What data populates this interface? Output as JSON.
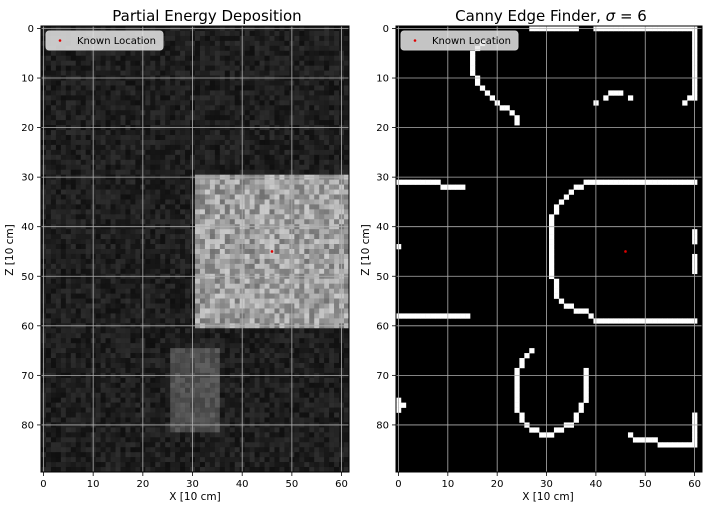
{
  "chart_data": [
    {
      "type": "heatmap",
      "title": "Partial Energy Deposition",
      "xlabel": "X [10 cm]",
      "ylabel": "Z [10 cm]",
      "xlim": [
        -0.5,
        61.5
      ],
      "ylim": [
        89.5,
        -0.5
      ],
      "xticks": [
        "0",
        "10",
        "20",
        "30",
        "40",
        "50",
        "60"
      ],
      "yticks": [
        "0",
        "10",
        "20",
        "30",
        "40",
        "50",
        "60",
        "70",
        "80"
      ],
      "grid": true,
      "legend_position": "top-left",
      "legend": [
        "Known Location"
      ],
      "colormap": "gray",
      "regions": [
        {
          "label": "background",
          "x": [
            0,
            61
          ],
          "z": [
            0,
            89
          ],
          "intensity": 0.12
        },
        {
          "label": "bright block",
          "x": [
            31,
            61
          ],
          "z": [
            30,
            60
          ],
          "intensity": 0.62
        },
        {
          "label": "dim block",
          "x": [
            26,
            35
          ],
          "z": [
            65,
            81
          ],
          "intensity": 0.32
        }
      ],
      "known_location": {
        "x": 46,
        "z": 45
      }
    },
    {
      "type": "heatmap",
      "title": "Canny Edge Finder, σ = 6",
      "title_prefix": "Canny Edge Finder, ",
      "title_sigma": "σ",
      "title_value": " = 6",
      "xlabel": "X [10 cm]",
      "ylabel": "Z [10 cm]",
      "xlim": [
        -0.5,
        61.5
      ],
      "ylim": [
        89.5,
        -0.5
      ],
      "xticks": [
        "0",
        "10",
        "20",
        "30",
        "40",
        "50",
        "60"
      ],
      "yticks": [
        "0",
        "10",
        "20",
        "30",
        "40",
        "50",
        "60",
        "70",
        "80"
      ],
      "grid": true,
      "legend_position": "top-left",
      "legend": [
        "Known Location"
      ],
      "colormap": "binary edges",
      "known_location": {
        "x": 46,
        "z": 45
      },
      "edge_pixels": [
        [
          27,
          0
        ],
        [
          28,
          0
        ],
        [
          29,
          0
        ],
        [
          30,
          0
        ],
        [
          31,
          0
        ],
        [
          32,
          0
        ],
        [
          33,
          0
        ],
        [
          34,
          0
        ],
        [
          35,
          0
        ],
        [
          36,
          0
        ],
        [
          40,
          0
        ],
        [
          41,
          0
        ],
        [
          42,
          0
        ],
        [
          43,
          0
        ],
        [
          44,
          0
        ],
        [
          45,
          0
        ],
        [
          46,
          0
        ],
        [
          47,
          0
        ],
        [
          48,
          0
        ],
        [
          49,
          0
        ],
        [
          50,
          0
        ],
        [
          51,
          0
        ],
        [
          52,
          0
        ],
        [
          53,
          0
        ],
        [
          54,
          0
        ],
        [
          55,
          0
        ],
        [
          56,
          0
        ],
        [
          57,
          0
        ],
        [
          58,
          0
        ],
        [
          59,
          0
        ],
        [
          60,
          0
        ],
        [
          60,
          1
        ],
        [
          60,
          2
        ],
        [
          60,
          3
        ],
        [
          60,
          4
        ],
        [
          60,
          5
        ],
        [
          60,
          6
        ],
        [
          60,
          7
        ],
        [
          60,
          8
        ],
        [
          60,
          9
        ],
        [
          60,
          10
        ],
        [
          60,
          11
        ],
        [
          60,
          12
        ],
        [
          60,
          13
        ],
        [
          59,
          14
        ],
        [
          60,
          14
        ],
        [
          58,
          15
        ],
        [
          17,
          3
        ],
        [
          16,
          4
        ],
        [
          15,
          5
        ],
        [
          15,
          6
        ],
        [
          15,
          7
        ],
        [
          15,
          8
        ],
        [
          15,
          9
        ],
        [
          16,
          10
        ],
        [
          16,
          11
        ],
        [
          17,
          12
        ],
        [
          18,
          13
        ],
        [
          19,
          14
        ],
        [
          20,
          15
        ],
        [
          21,
          16
        ],
        [
          22,
          16
        ],
        [
          23,
          17
        ],
        [
          24,
          18
        ],
        [
          24,
          19
        ],
        [
          43,
          13
        ],
        [
          44,
          13
        ],
        [
          45,
          13
        ],
        [
          42,
          14
        ],
        [
          47,
          14
        ],
        [
          40,
          15
        ],
        [
          0,
          31
        ],
        [
          1,
          31
        ],
        [
          2,
          31
        ],
        [
          3,
          31
        ],
        [
          4,
          31
        ],
        [
          5,
          31
        ],
        [
          6,
          31
        ],
        [
          7,
          31
        ],
        [
          8,
          31
        ],
        [
          9,
          32
        ],
        [
          10,
          32
        ],
        [
          11,
          32
        ],
        [
          12,
          32
        ],
        [
          13,
          32
        ],
        [
          40,
          31
        ],
        [
          41,
          31
        ],
        [
          42,
          31
        ],
        [
          43,
          31
        ],
        [
          44,
          31
        ],
        [
          45,
          31
        ],
        [
          46,
          31
        ],
        [
          47,
          31
        ],
        [
          48,
          31
        ],
        [
          49,
          31
        ],
        [
          50,
          31
        ],
        [
          51,
          31
        ],
        [
          52,
          31
        ],
        [
          53,
          31
        ],
        [
          54,
          31
        ],
        [
          55,
          31
        ],
        [
          56,
          31
        ],
        [
          57,
          31
        ],
        [
          58,
          31
        ],
        [
          59,
          31
        ],
        [
          60,
          31
        ],
        [
          38,
          31
        ],
        [
          39,
          31
        ],
        [
          36,
          32
        ],
        [
          37,
          32
        ],
        [
          35,
          33
        ],
        [
          34,
          34
        ],
        [
          33,
          35
        ],
        [
          32,
          36
        ],
        [
          32,
          37
        ],
        [
          31,
          38
        ],
        [
          31,
          39
        ],
        [
          31,
          40
        ],
        [
          31,
          41
        ],
        [
          31,
          42
        ],
        [
          31,
          43
        ],
        [
          31,
          44
        ],
        [
          31,
          45
        ],
        [
          31,
          46
        ],
        [
          31,
          47
        ],
        [
          31,
          48
        ],
        [
          31,
          49
        ],
        [
          31,
          50
        ],
        [
          32,
          51
        ],
        [
          32,
          52
        ],
        [
          32,
          53
        ],
        [
          32,
          54
        ],
        [
          33,
          55
        ],
        [
          34,
          56
        ],
        [
          35,
          56
        ],
        [
          36,
          57
        ],
        [
          37,
          57
        ],
        [
          38,
          57
        ],
        [
          39,
          58
        ],
        [
          40,
          59
        ],
        [
          41,
          59
        ],
        [
          42,
          59
        ],
        [
          43,
          59
        ],
        [
          44,
          59
        ],
        [
          45,
          59
        ],
        [
          46,
          59
        ],
        [
          47,
          59
        ],
        [
          48,
          59
        ],
        [
          49,
          59
        ],
        [
          50,
          59
        ],
        [
          51,
          59
        ],
        [
          52,
          59
        ],
        [
          53,
          59
        ],
        [
          54,
          59
        ],
        [
          55,
          59
        ],
        [
          56,
          59
        ],
        [
          57,
          59
        ],
        [
          58,
          59
        ],
        [
          59,
          59
        ],
        [
          60,
          59
        ],
        [
          60,
          41
        ],
        [
          60,
          42
        ],
        [
          60,
          43
        ],
        [
          60,
          46
        ],
        [
          60,
          47
        ],
        [
          60,
          48
        ],
        [
          60,
          49
        ],
        [
          0,
          44
        ],
        [
          0,
          58
        ],
        [
          1,
          58
        ],
        [
          2,
          58
        ],
        [
          3,
          58
        ],
        [
          4,
          58
        ],
        [
          5,
          58
        ],
        [
          6,
          58
        ],
        [
          7,
          58
        ],
        [
          8,
          58
        ],
        [
          9,
          58
        ],
        [
          10,
          58
        ],
        [
          11,
          58
        ],
        [
          12,
          58
        ],
        [
          13,
          58
        ],
        [
          14,
          58
        ],
        [
          27,
          65
        ],
        [
          26,
          66
        ],
        [
          25,
          67
        ],
        [
          25,
          68
        ],
        [
          24,
          69
        ],
        [
          24,
          70
        ],
        [
          24,
          71
        ],
        [
          24,
          72
        ],
        [
          24,
          73
        ],
        [
          24,
          74
        ],
        [
          24,
          75
        ],
        [
          24,
          76
        ],
        [
          24,
          77
        ],
        [
          25,
          78
        ],
        [
          25,
          79
        ],
        [
          26,
          80
        ],
        [
          27,
          81
        ],
        [
          28,
          81
        ],
        [
          29,
          82
        ],
        [
          30,
          82
        ],
        [
          31,
          82
        ],
        [
          32,
          81
        ],
        [
          33,
          81
        ],
        [
          34,
          80
        ],
        [
          35,
          80
        ],
        [
          36,
          79
        ],
        [
          36,
          78
        ],
        [
          37,
          77
        ],
        [
          37,
          76
        ],
        [
          38,
          75
        ],
        [
          38,
          74
        ],
        [
          38,
          73
        ],
        [
          38,
          72
        ],
        [
          38,
          71
        ],
        [
          38,
          70
        ],
        [
          38,
          69
        ],
        [
          0,
          75
        ],
        [
          0,
          76
        ],
        [
          1,
          76
        ],
        [
          0,
          77
        ],
        [
          47,
          82
        ],
        [
          48,
          83
        ],
        [
          49,
          83
        ],
        [
          50,
          83
        ],
        [
          51,
          83
        ],
        [
          52,
          83
        ],
        [
          53,
          84
        ],
        [
          54,
          84
        ],
        [
          55,
          84
        ],
        [
          56,
          84
        ],
        [
          57,
          84
        ],
        [
          58,
          84
        ],
        [
          59,
          84
        ],
        [
          60,
          84
        ],
        [
          60,
          83
        ],
        [
          60,
          82
        ],
        [
          60,
          81
        ],
        [
          60,
          80
        ],
        [
          60,
          79
        ],
        [
          60,
          78
        ]
      ]
    }
  ]
}
